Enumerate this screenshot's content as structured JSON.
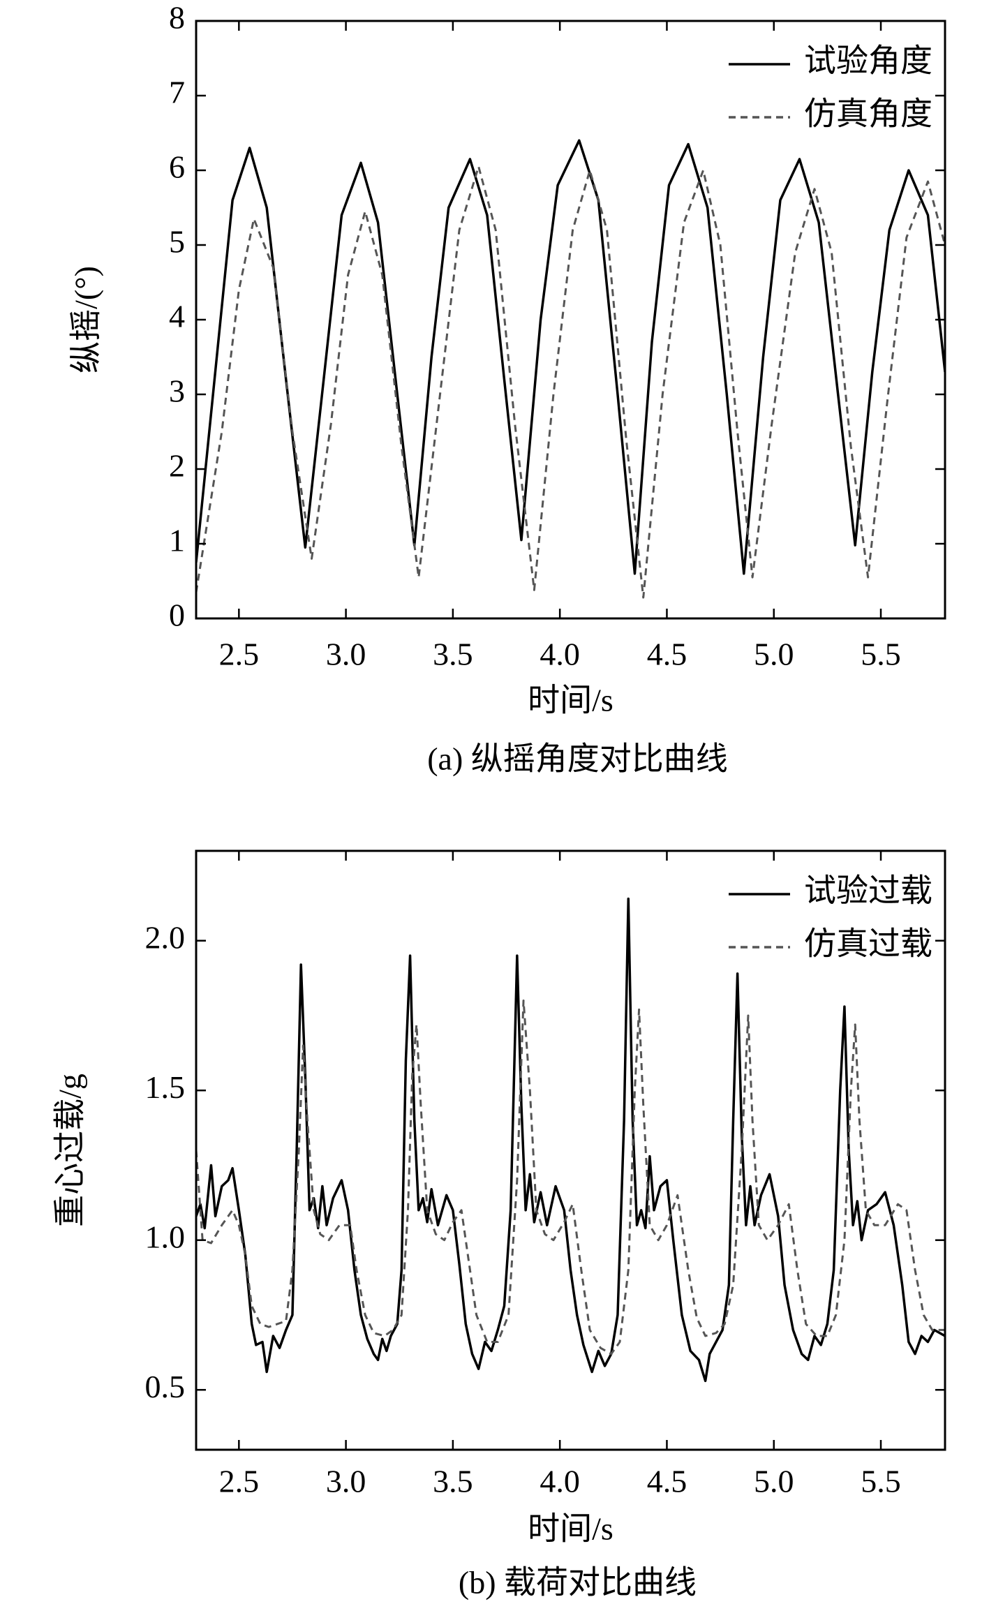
{
  "chart_data": [
    {
      "type": "line",
      "caption": "(a) 纵摇角度对比曲线",
      "xlabel": "时间/s",
      "ylabel": "纵摇/(°)",
      "xlim": [
        2.3,
        5.8
      ],
      "ylim": [
        0,
        8
      ],
      "xticks": [
        2.5,
        {
          "value": 3,
          "label": "3.0"
        },
        3.5,
        {
          "value": 4,
          "label": "4.0"
        },
        4.5,
        {
          "value": 5,
          "label": "5.0"
        },
        5.5
      ],
      "yticks": [
        0,
        1,
        2,
        3,
        4,
        5,
        6,
        7,
        8
      ],
      "legend": "upper right",
      "series": [
        {
          "name": "试验角度",
          "color": "#000000",
          "line_style": "solid",
          "x": [
            2.3,
            2.4,
            2.47,
            2.55,
            2.63,
            2.72,
            2.81,
            2.9,
            2.98,
            3.07,
            3.15,
            3.24,
            3.32,
            3.4,
            3.48,
            3.58,
            3.66,
            3.74,
            3.82,
            3.91,
            3.99,
            4.09,
            4.18,
            4.27,
            4.35,
            4.43,
            4.51,
            4.6,
            4.69,
            4.78,
            4.86,
            4.95,
            5.03,
            5.12,
            5.21,
            5.3,
            5.38,
            5.46,
            5.54,
            5.63,
            5.72,
            5.8
          ],
          "values": [
            0.75,
            3.6,
            5.6,
            6.3,
            5.5,
            3.2,
            0.95,
            3.3,
            5.4,
            6.1,
            5.3,
            3.0,
            0.98,
            3.5,
            5.5,
            6.15,
            5.4,
            3.2,
            1.05,
            4.0,
            5.8,
            6.4,
            5.6,
            3.0,
            0.6,
            3.7,
            5.8,
            6.35,
            5.5,
            3.0,
            0.6,
            3.5,
            5.6,
            6.15,
            5.3,
            3.0,
            0.98,
            3.3,
            5.2,
            6.0,
            5.4,
            3.3
          ]
        },
        {
          "name": "仿真角度",
          "color": "#555555",
          "line_style": "dashed",
          "x": [
            2.3,
            2.42,
            2.5,
            2.57,
            2.66,
            2.75,
            2.84,
            2.93,
            3.01,
            3.09,
            3.17,
            3.26,
            3.34,
            3.44,
            3.53,
            3.62,
            3.7,
            3.79,
            3.88,
            3.97,
            4.06,
            4.14,
            4.22,
            4.31,
            4.39,
            4.48,
            4.58,
            4.67,
            4.75,
            4.83,
            4.9,
            4.99,
            5.1,
            5.19,
            5.27,
            5.36,
            5.44,
            5.53,
            5.62,
            5.72,
            5.8
          ],
          "values": [
            0.35,
            2.5,
            4.4,
            5.35,
            4.7,
            2.5,
            0.8,
            2.6,
            4.6,
            5.45,
            4.6,
            2.3,
            0.55,
            3.0,
            5.2,
            6.05,
            5.2,
            2.6,
            0.38,
            3.0,
            5.2,
            6.0,
            5.2,
            2.4,
            0.28,
            3.0,
            5.3,
            6.0,
            5.0,
            2.5,
            0.55,
            2.6,
            4.9,
            5.75,
            4.9,
            2.3,
            0.55,
            2.9,
            5.1,
            5.85,
            5.0
          ]
        }
      ]
    },
    {
      "type": "line",
      "caption": "(b) 载荷对比曲线",
      "xlabel": "时间/s",
      "ylabel": "重心过载/g",
      "xlim": [
        2.3,
        5.8
      ],
      "ylim": [
        0.3,
        2.3
      ],
      "xticks": [
        2.5,
        {
          "value": 3,
          "label": "3.0"
        },
        3.5,
        {
          "value": 4,
          "label": "4.0"
        },
        4.5,
        {
          "value": 5,
          "label": "5.0"
        },
        5.5
      ],
      "yticks": [
        0.5,
        {
          "value": 1,
          "label": "1.0"
        },
        1.5,
        {
          "value": 2,
          "label": "2.0"
        }
      ],
      "legend": "upper right",
      "series": [
        {
          "name": "试验过载",
          "color": "#000000",
          "line_style": "solid",
          "x": [
            2.3,
            2.32,
            2.34,
            2.37,
            2.39,
            2.42,
            2.45,
            2.47,
            2.5,
            2.53,
            2.56,
            2.58,
            2.61,
            2.63,
            2.66,
            2.69,
            2.72,
            2.75,
            2.77,
            2.79,
            2.81,
            2.83,
            2.85,
            2.87,
            2.89,
            2.91,
            2.94,
            2.98,
            3.01,
            3.04,
            3.07,
            3.1,
            3.13,
            3.15,
            3.17,
            3.19,
            3.21,
            3.24,
            3.26,
            3.28,
            3.3,
            3.32,
            3.34,
            3.36,
            3.38,
            3.4,
            3.43,
            3.47,
            3.5,
            3.53,
            3.56,
            3.59,
            3.62,
            3.65,
            3.68,
            3.71,
            3.74,
            3.77,
            3.8,
            3.82,
            3.84,
            3.86,
            3.88,
            3.91,
            3.94,
            3.98,
            4.02,
            4.05,
            4.08,
            4.11,
            4.15,
            4.18,
            4.21,
            4.24,
            4.27,
            4.3,
            4.32,
            4.34,
            4.36,
            4.38,
            4.4,
            4.42,
            4.44,
            4.47,
            4.5,
            4.53,
            4.57,
            4.61,
            4.65,
            4.68,
            4.7,
            4.73,
            4.76,
            4.79,
            4.81,
            4.83,
            4.85,
            4.87,
            4.89,
            4.91,
            4.94,
            4.98,
            5.02,
            5.05,
            5.09,
            5.13,
            5.16,
            5.19,
            5.22,
            5.25,
            5.28,
            5.31,
            5.33,
            5.35,
            5.37,
            5.39,
            5.41,
            5.44,
            5.48,
            5.52,
            5.56,
            5.6,
            5.63,
            5.66,
            5.69,
            5.72,
            5.75,
            5.8
          ],
          "values": [
            1.08,
            1.12,
            1.04,
            1.25,
            1.08,
            1.18,
            1.2,
            1.24,
            1.1,
            0.95,
            0.72,
            0.65,
            0.66,
            0.56,
            0.68,
            0.64,
            0.7,
            0.75,
            1.3,
            1.92,
            1.55,
            1.1,
            1.14,
            1.04,
            1.18,
            1.05,
            1.14,
            1.2,
            1.1,
            0.9,
            0.75,
            0.67,
            0.62,
            0.6,
            0.67,
            0.63,
            0.68,
            0.72,
            0.9,
            1.6,
            1.95,
            1.4,
            1.1,
            1.14,
            1.06,
            1.17,
            1.05,
            1.15,
            1.1,
            0.92,
            0.72,
            0.62,
            0.57,
            0.66,
            0.63,
            0.7,
            0.78,
            1.1,
            1.95,
            1.45,
            1.1,
            1.22,
            1.06,
            1.16,
            1.05,
            1.18,
            1.1,
            0.9,
            0.75,
            0.65,
            0.56,
            0.63,
            0.58,
            0.62,
            0.75,
            1.4,
            2.14,
            1.4,
            1.05,
            1.1,
            1.04,
            1.28,
            1.1,
            1.18,
            1.2,
            1.0,
            0.75,
            0.63,
            0.6,
            0.53,
            0.62,
            0.66,
            0.7,
            0.85,
            1.4,
            1.89,
            1.35,
            1.05,
            1.18,
            1.05,
            1.15,
            1.22,
            1.08,
            0.85,
            0.7,
            0.62,
            0.6,
            0.68,
            0.65,
            0.72,
            0.9,
            1.5,
            1.78,
            1.3,
            1.05,
            1.13,
            1.0,
            1.1,
            1.12,
            1.16,
            1.05,
            0.85,
            0.66,
            0.62,
            0.68,
            0.66,
            0.7,
            0.68
          ]
        },
        {
          "name": "仿真过载",
          "color": "#555555",
          "line_style": "dashed",
          "x": [
            2.3,
            2.33,
            2.37,
            2.42,
            2.47,
            2.5,
            2.53,
            2.56,
            2.6,
            2.64,
            2.68,
            2.72,
            2.75,
            2.78,
            2.8,
            2.82,
            2.85,
            2.88,
            2.92,
            2.97,
            3.02,
            3.05,
            3.09,
            3.13,
            3.18,
            3.22,
            3.26,
            3.29,
            3.31,
            3.33,
            3.35,
            3.38,
            3.42,
            3.46,
            3.5,
            3.54,
            3.57,
            3.61,
            3.66,
            3.71,
            3.76,
            3.8,
            3.83,
            3.86,
            3.89,
            3.93,
            3.97,
            4.02,
            4.06,
            4.1,
            4.14,
            4.19,
            4.24,
            4.28,
            4.32,
            4.35,
            4.37,
            4.39,
            4.42,
            4.46,
            4.5,
            4.55,
            4.6,
            4.64,
            4.68,
            4.73,
            4.77,
            4.81,
            4.85,
            4.88,
            4.9,
            4.93,
            4.97,
            5.02,
            5.07,
            5.11,
            5.15,
            5.2,
            5.25,
            5.29,
            5.33,
            5.36,
            5.38,
            5.4,
            5.43,
            5.47,
            5.52,
            5.58,
            5.62,
            5.66,
            5.7,
            5.74,
            5.8
          ],
          "values": [
            1.3,
            1.0,
            0.99,
            1.05,
            1.1,
            1.05,
            0.95,
            0.78,
            0.72,
            0.71,
            0.72,
            0.73,
            0.9,
            1.3,
            1.65,
            1.4,
            1.1,
            1.02,
            1.0,
            1.05,
            1.05,
            0.9,
            0.75,
            0.69,
            0.68,
            0.7,
            0.75,
            1.1,
            1.55,
            1.72,
            1.45,
            1.1,
            1.02,
            1.0,
            1.06,
            1.1,
            0.95,
            0.75,
            0.66,
            0.66,
            0.75,
            1.2,
            1.8,
            1.5,
            1.1,
            1.02,
            1.0,
            1.06,
            1.12,
            0.9,
            0.7,
            0.64,
            0.62,
            0.66,
            0.9,
            1.5,
            1.77,
            1.45,
            1.05,
            1.0,
            1.05,
            1.15,
            0.9,
            0.74,
            0.68,
            0.69,
            0.72,
            0.85,
            1.3,
            1.75,
            1.4,
            1.05,
            1.0,
            1.05,
            1.12,
            0.9,
            0.72,
            0.68,
            0.68,
            0.75,
            1.0,
            1.5,
            1.72,
            1.4,
            1.1,
            1.05,
            1.05,
            1.12,
            1.1,
            0.9,
            0.75,
            0.7,
            0.7
          ]
        }
      ]
    }
  ]
}
